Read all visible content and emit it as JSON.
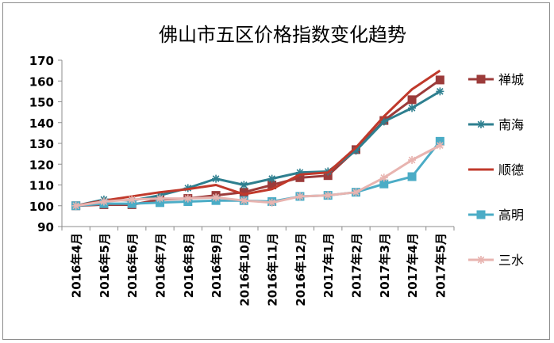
{
  "chart_data": {
    "type": "line",
    "title": "佛山市五区价格指数变化趋势",
    "categories": [
      "2016年4月",
      "2016年5月",
      "2016年6月",
      "2016年7月",
      "2016年8月",
      "2016年9月",
      "2016年10月",
      "2016年11月",
      "2016年12月",
      "2017年1月",
      "2017年2月",
      "2017年3月",
      "2017年4月",
      "2017年5月"
    ],
    "ylim": [
      90,
      170
    ],
    "yticks": [
      90,
      100,
      110,
      120,
      130,
      140,
      150,
      160,
      170
    ],
    "grid": false,
    "legend_position": "right",
    "series": [
      {
        "name": "禅城",
        "color": "#9c3b3a",
        "marker": "square",
        "values": [
          100,
          100.5,
          100.5,
          103,
          103.5,
          105,
          106.5,
          110,
          113.5,
          114.5,
          127,
          141,
          151,
          160.5
        ]
      },
      {
        "name": "南海",
        "color": "#2e7f8f",
        "marker": "star",
        "values": [
          100,
          103,
          102.5,
          105,
          108.5,
          113,
          110,
          113,
          116,
          116.5,
          126.5,
          140.5,
          147,
          155
        ]
      },
      {
        "name": "顺德",
        "color": "#c0392b",
        "marker": "none",
        "values": [
          100,
          102.5,
          104.5,
          106.5,
          108,
          110,
          105.5,
          108,
          115,
          116,
          128,
          143,
          156,
          165
        ]
      },
      {
        "name": "高明",
        "color": "#4bacc6",
        "marker": "square",
        "values": [
          100,
          101,
          101,
          101.5,
          102,
          102.5,
          102.5,
          102,
          104.5,
          105,
          106.5,
          110.5,
          114,
          131
        ]
      },
      {
        "name": "三水",
        "color": "#e8b4b0",
        "marker": "star",
        "values": [
          100,
          102,
          103,
          103.5,
          103.5,
          104,
          102.5,
          101.5,
          104.5,
          105,
          106.5,
          113.5,
          122,
          129
        ]
      }
    ]
  }
}
